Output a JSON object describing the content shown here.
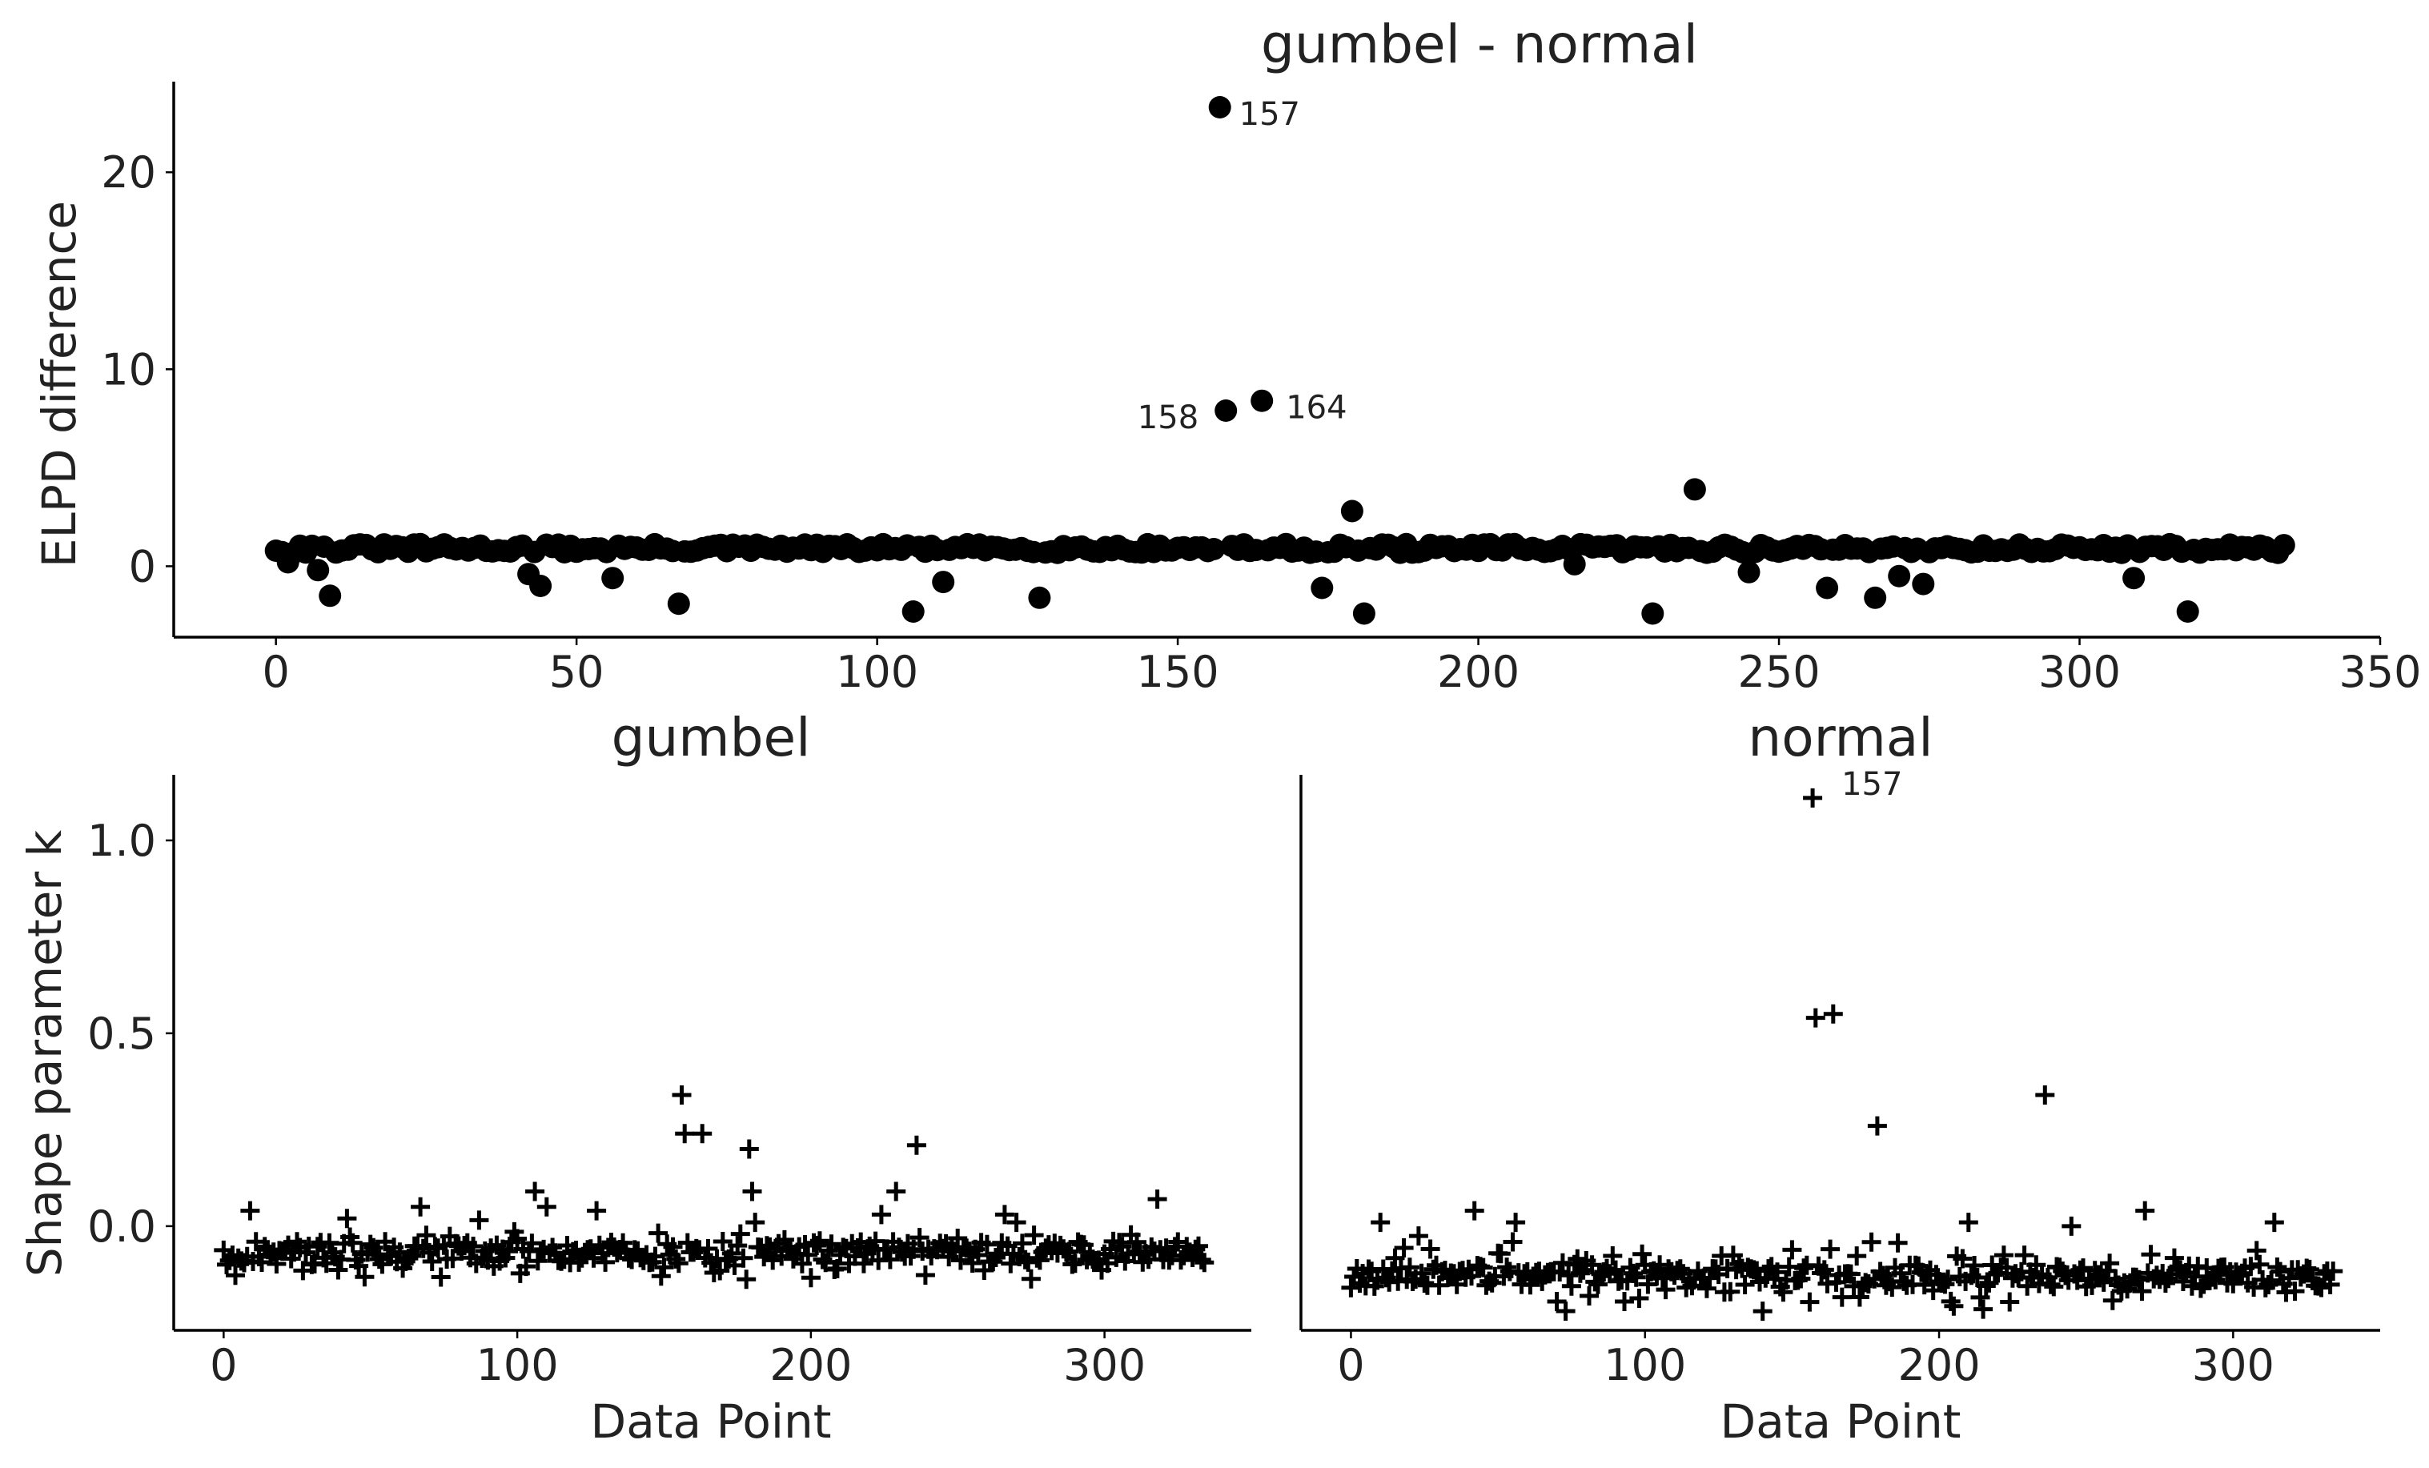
{
  "chart_data": [
    {
      "type": "scatter",
      "title": "gumbel - normal",
      "xlabel": "",
      "ylabel": "ELPD difference",
      "xlim": [
        -17,
        350
      ],
      "ylim": [
        -3.6,
        24.6
      ],
      "xticks": [
        0,
        50,
        100,
        150,
        200,
        250,
        300,
        350
      ],
      "yticks": [
        0,
        10,
        20
      ],
      "marker": "circle",
      "grid": false,
      "baseline_value": 0.9,
      "annotations": [
        {
          "label": "157",
          "x": 157,
          "y": 23.3
        },
        {
          "label": "158",
          "x": 158,
          "y": 7.9
        },
        {
          "label": "164",
          "x": 164,
          "y": 8.4
        }
      ],
      "outliers": [
        {
          "x": 157,
          "y": 23.3
        },
        {
          "x": 158,
          "y": 7.9
        },
        {
          "x": 164,
          "y": 8.4
        },
        {
          "x": 179,
          "y": 2.8
        },
        {
          "x": 236,
          "y": 3.9
        },
        {
          "x": 9,
          "y": -1.5
        },
        {
          "x": 67,
          "y": -1.9
        },
        {
          "x": 106,
          "y": -2.3
        },
        {
          "x": 127,
          "y": -1.6
        },
        {
          "x": 174,
          "y": -1.1
        },
        {
          "x": 181,
          "y": -2.4
        },
        {
          "x": 229,
          "y": -2.4
        },
        {
          "x": 258,
          "y": -1.1
        },
        {
          "x": 266,
          "y": -1.6
        },
        {
          "x": 274,
          "y": -0.9
        },
        {
          "x": 318,
          "y": -2.3
        },
        {
          "x": 44,
          "y": -1.0
        },
        {
          "x": 56,
          "y": -0.6
        },
        {
          "x": 111,
          "y": -0.8
        },
        {
          "x": 309,
          "y": -0.6
        },
        {
          "x": 42,
          "y": -0.4
        },
        {
          "x": 245,
          "y": -0.3
        },
        {
          "x": 270,
          "y": -0.5
        },
        {
          "x": 7,
          "y": -0.2
        },
        {
          "x": 2,
          "y": 0.2
        },
        {
          "x": 216,
          "y": 0.1
        }
      ]
    },
    {
      "type": "scatter",
      "title": "gumbel",
      "xlabel": "Data Point",
      "ylabel": "Shape parameter k",
      "xlim": [
        -17,
        350
      ],
      "ylim": [
        -0.27,
        1.17
      ],
      "xticks": [
        0,
        100,
        200,
        300
      ],
      "yticks": [
        0.0,
        0.5,
        1.0
      ],
      "ytick_labels": [
        "0.0",
        "0.5",
        "1.0"
      ],
      "marker": "plus",
      "grid": false,
      "baseline_value": -0.07,
      "annotations": [],
      "outliers": [
        {
          "x": 156,
          "y": 0.34
        },
        {
          "x": 157,
          "y": 0.24
        },
        {
          "x": 163,
          "y": 0.24
        },
        {
          "x": 179,
          "y": 0.2
        },
        {
          "x": 180,
          "y": 0.09
        },
        {
          "x": 236,
          "y": 0.21
        },
        {
          "x": 229,
          "y": 0.09
        },
        {
          "x": 318,
          "y": 0.07
        },
        {
          "x": 106,
          "y": 0.09
        },
        {
          "x": 110,
          "y": 0.05
        },
        {
          "x": 9,
          "y": 0.04
        },
        {
          "x": 67,
          "y": 0.05
        },
        {
          "x": 127,
          "y": 0.04
        },
        {
          "x": 266,
          "y": 0.03
        },
        {
          "x": 224,
          "y": 0.03
        },
        {
          "x": 42,
          "y": 0.02
        },
        {
          "x": 270,
          "y": 0.01
        },
        {
          "x": 181,
          "y": 0.01
        }
      ]
    },
    {
      "type": "scatter",
      "title": "normal",
      "xlabel": "Data Point",
      "ylabel": "",
      "xlim": [
        -17,
        350
      ],
      "ylim": [
        -0.27,
        1.17
      ],
      "xticks": [
        0,
        100,
        200,
        300
      ],
      "marker": "plus",
      "grid": false,
      "baseline_value": -0.13,
      "annotations": [
        {
          "label": "157",
          "x": 157,
          "y": 1.11
        }
      ],
      "outliers": [
        {
          "x": 157,
          "y": 1.11
        },
        {
          "x": 158,
          "y": 0.54
        },
        {
          "x": 164,
          "y": 0.55
        },
        {
          "x": 179,
          "y": 0.26
        },
        {
          "x": 236,
          "y": 0.34
        },
        {
          "x": 245,
          "y": 0.0
        },
        {
          "x": 42,
          "y": 0.04
        },
        {
          "x": 56,
          "y": 0.01
        },
        {
          "x": 270,
          "y": 0.04
        },
        {
          "x": 10,
          "y": 0.01
        },
        {
          "x": 210,
          "y": 0.01
        },
        {
          "x": 314,
          "y": 0.01
        }
      ]
    }
  ]
}
